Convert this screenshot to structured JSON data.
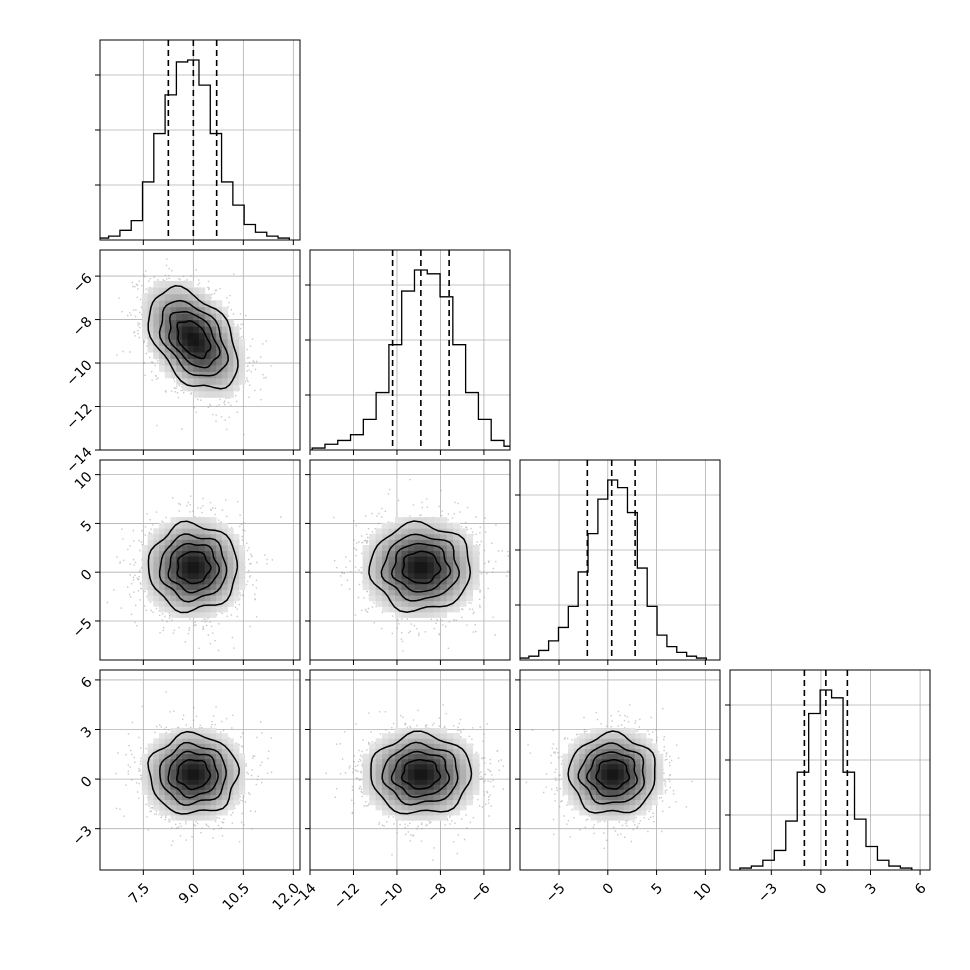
{
  "chart_data": {
    "type": "corner",
    "grid": true,
    "parameters": [
      {
        "range": [
          6.2,
          12.2
        ],
        "ticks": [
          7.5,
          9.0,
          10.5,
          12.0
        ],
        "tick_labels": [
          "7.5",
          "9.0",
          "10.5",
          "12.0"
        ],
        "quantiles": [
          8.25,
          9.0,
          9.7
        ],
        "center": 9.0,
        "sd": 0.72
      },
      {
        "range": [
          -14,
          -4.8
        ],
        "ticks": [
          -14,
          -12,
          -10,
          -8,
          -6
        ],
        "tick_labels": [
          "−14",
          "−12",
          "−10",
          "−8",
          "−6"
        ],
        "quantiles": [
          -10.2,
          -8.9,
          -7.6
        ],
        "center": -8.9,
        "sd": 1.25
      },
      {
        "range": [
          -9,
          11.5
        ],
        "ticks": [
          -5,
          0,
          5,
          10
        ],
        "tick_labels": [
          "−5",
          "0",
          "5",
          "10"
        ],
        "quantiles": [
          -2.1,
          0.4,
          2.8
        ],
        "center": 0.5,
        "sd": 2.4
      },
      {
        "range": [
          -5.5,
          6.6
        ],
        "ticks": [
          -3,
          0,
          3,
          6
        ],
        "tick_labels": [
          "−3",
          "0",
          "3",
          "6"
        ],
        "quantiles": [
          -1.0,
          0.3,
          1.6
        ],
        "center": 0.3,
        "sd": 1.3
      }
    ],
    "left_axis_tick_labels": {
      "row2": [
        "−6",
        "−8",
        "−10",
        "−12",
        "−14"
      ],
      "row3": [
        "10",
        "5",
        "0",
        "−5"
      ],
      "row4": [
        "6",
        "3",
        "0",
        "−3"
      ]
    },
    "histograms": [
      [
        1,
        2,
        5,
        10,
        30,
        55,
        75,
        92,
        93,
        80,
        55,
        30,
        18,
        8,
        4,
        2,
        1
      ],
      [
        1,
        3,
        5,
        8,
        16,
        30,
        55,
        83,
        94,
        92,
        80,
        55,
        30,
        16,
        5,
        2,
        1
      ],
      [
        1,
        2,
        5,
        10,
        17,
        28,
        46,
        66,
        84,
        94,
        90,
        77,
        48,
        28,
        13,
        7,
        4,
        2,
        1
      ],
      [
        1,
        2,
        5,
        10,
        25,
        50,
        80,
        92,
        88,
        50,
        26,
        12,
        5,
        2,
        1
      ]
    ],
    "correlations": {
      "1-0": -0.42,
      "2-0": 0.0,
      "2-1": 0.0,
      "3-0": 0.0,
      "3-1": 0.0,
      "3-2": 0.0
    }
  }
}
